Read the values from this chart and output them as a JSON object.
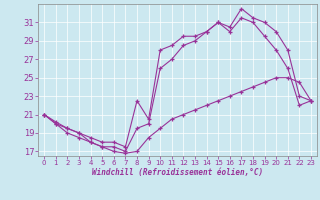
{
  "xlabel": "Windchill (Refroidissement éolien,°C)",
  "bg_color": "#cce8f0",
  "line_color": "#993399",
  "xlim": [
    -0.5,
    23.5
  ],
  "ylim": [
    16.5,
    33
  ],
  "yticks": [
    17,
    19,
    21,
    23,
    25,
    27,
    29,
    31
  ],
  "xticks": [
    0,
    1,
    2,
    3,
    4,
    5,
    6,
    7,
    8,
    9,
    10,
    11,
    12,
    13,
    14,
    15,
    16,
    17,
    18,
    19,
    20,
    21,
    22,
    23
  ],
  "series": [
    {
      "x": [
        0,
        1,
        2,
        3,
        4,
        5,
        6,
        7,
        8,
        9,
        10,
        11,
        12,
        13,
        14,
        15,
        16,
        17,
        18,
        19,
        20,
        21,
        22,
        23
      ],
      "y": [
        21.0,
        20.2,
        19.5,
        19.0,
        18.5,
        18.0,
        18.0,
        17.5,
        22.5,
        20.5,
        28.0,
        28.5,
        29.5,
        29.5,
        30.0,
        31.0,
        30.5,
        32.5,
        31.5,
        31.0,
        30.0,
        28.0,
        23.0,
        22.5
      ]
    },
    {
      "x": [
        0,
        1,
        2,
        3,
        4,
        5,
        6,
        7,
        8,
        9,
        10,
        11,
        12,
        13,
        14,
        15,
        16,
        17,
        18,
        19,
        20,
        21,
        22,
        23
      ],
      "y": [
        21.0,
        20.0,
        19.0,
        18.5,
        18.0,
        17.5,
        17.5,
        17.0,
        19.5,
        20.0,
        26.0,
        27.0,
        28.5,
        29.0,
        30.0,
        31.0,
        30.0,
        31.5,
        31.0,
        29.5,
        28.0,
        26.0,
        22.0,
        22.5
      ]
    },
    {
      "x": [
        0,
        1,
        2,
        3,
        4,
        5,
        6,
        7,
        8,
        9,
        10,
        11,
        12,
        13,
        14,
        15,
        16,
        17,
        18,
        19,
        20,
        21,
        22,
        23
      ],
      "y": [
        21.0,
        20.0,
        19.5,
        19.0,
        18.0,
        17.5,
        17.0,
        16.8,
        17.0,
        18.5,
        19.5,
        20.5,
        21.0,
        21.5,
        22.0,
        22.5,
        23.0,
        23.5,
        24.0,
        24.5,
        25.0,
        25.0,
        24.5,
        22.5
      ]
    }
  ]
}
